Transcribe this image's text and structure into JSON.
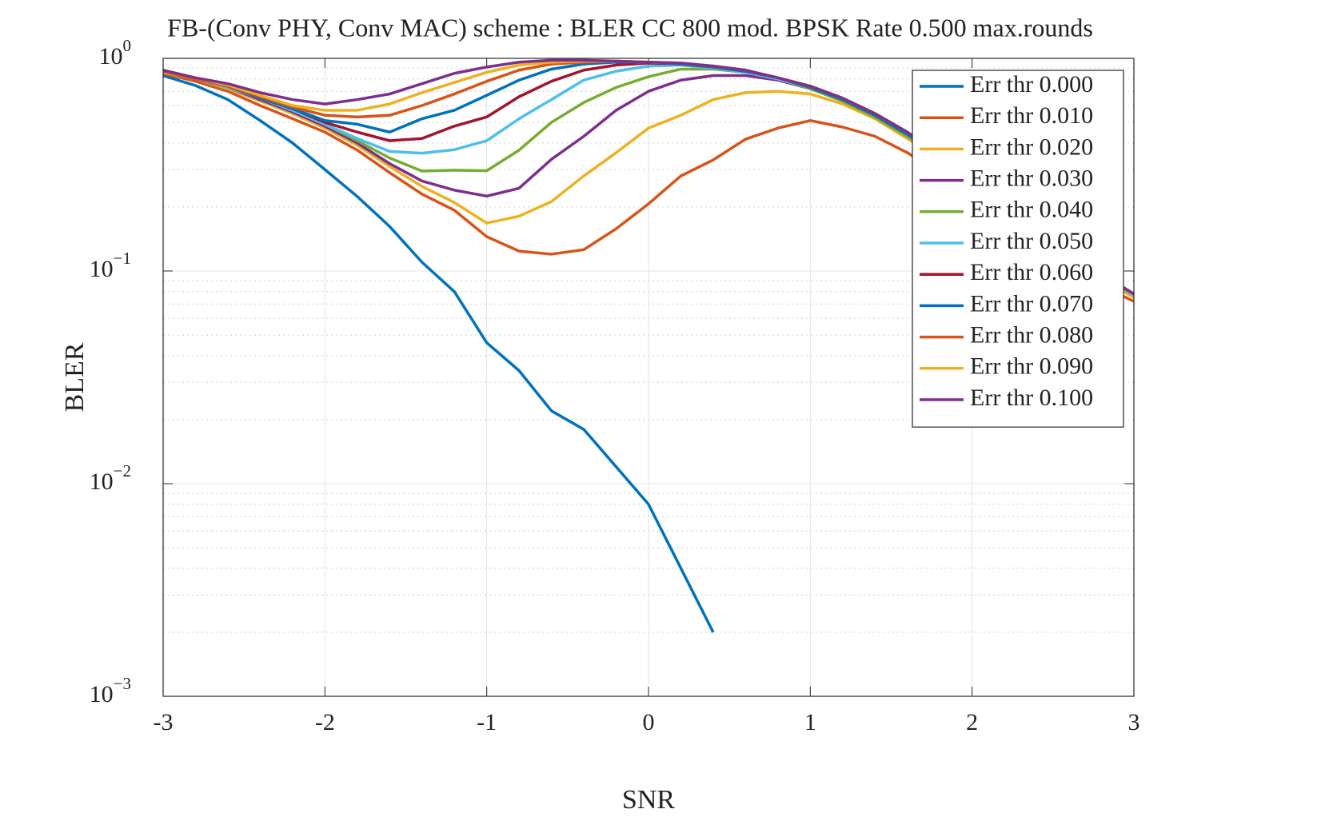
{
  "chart_data": {
    "type": "line",
    "title": "FB-(Conv PHY, Conv MAC) scheme : BLER CC 800 mod. BPSK Rate 0.500 max.rounds",
    "xlabel": "SNR",
    "ylabel": "BLER",
    "log_y": true,
    "grid": true,
    "minor_grid": true,
    "legend": "northeast",
    "xlim": [
      -3,
      3
    ],
    "ylim": [
      0.001,
      1
    ],
    "xticks": [
      -3,
      -2,
      -1,
      0,
      1,
      2,
      3
    ],
    "yticks": [
      {
        "value": 0.001,
        "label": "10",
        "exp": "−3"
      },
      {
        "value": 0.01,
        "label": "10",
        "exp": "−2"
      },
      {
        "value": 0.1,
        "label": "10",
        "exp": "−1"
      },
      {
        "value": 1,
        "label": "10",
        "exp": "0"
      }
    ],
    "x": [
      -3,
      -2.8,
      -2.6,
      -2.4,
      -2.2,
      -2,
      -1.8,
      -1.6,
      -1.4,
      -1.2,
      -1,
      -0.8,
      -0.6,
      -0.4,
      -0.2,
      0,
      0.2,
      0.4,
      0.6,
      0.8,
      1,
      1.2,
      1.4,
      1.6,
      1.8,
      2,
      2.2,
      2.4,
      2.6,
      2.8,
      3
    ],
    "series": [
      {
        "name": "Err thr 0.000",
        "color": "#0072BD",
        "values": [
          0.83,
          0.745,
          0.64,
          0.51,
          0.4,
          0.3,
          0.224,
          0.162,
          0.11,
          0.08,
          0.046,
          0.034,
          0.022,
          0.018,
          0.012,
          0.008,
          0.004,
          0.002,
          null,
          null,
          null,
          null,
          null,
          null,
          null,
          null,
          null,
          null,
          null,
          null,
          null
        ]
      },
      {
        "name": "Err thr 0.010",
        "color": "#D95319",
        "values": [
          0.85,
          0.78,
          0.7,
          0.6,
          0.52,
          0.45,
          0.37,
          0.29,
          0.23,
          0.193,
          0.145,
          0.124,
          0.12,
          0.126,
          0.158,
          0.207,
          0.28,
          0.333,
          0.417,
          0.47,
          0.51,
          0.475,
          0.43,
          0.36,
          0.29,
          0.22,
          0.17,
          0.13,
          0.105,
          0.085,
          0.072
        ]
      },
      {
        "name": "Err thr 0.020",
        "color": "#EDB120",
        "values": [
          0.86,
          0.8,
          0.72,
          0.63,
          0.55,
          0.47,
          0.39,
          0.31,
          0.25,
          0.21,
          0.168,
          0.181,
          0.212,
          0.28,
          0.36,
          0.47,
          0.54,
          0.64,
          0.69,
          0.7,
          0.68,
          0.61,
          0.52,
          0.42,
          0.33,
          0.25,
          0.19,
          0.145,
          0.113,
          0.092,
          0.075
        ]
      },
      {
        "name": "Err thr 0.030",
        "color": "#7E2F8E",
        "values": [
          0.87,
          0.8,
          0.73,
          0.64,
          0.56,
          0.48,
          0.4,
          0.32,
          0.265,
          0.24,
          0.225,
          0.245,
          0.335,
          0.43,
          0.57,
          0.7,
          0.79,
          0.83,
          0.83,
          0.79,
          0.72,
          0.63,
          0.53,
          0.43,
          0.34,
          0.26,
          0.2,
          0.15,
          0.117,
          0.095,
          0.077
        ]
      },
      {
        "name": "Err thr 0.040",
        "color": "#77AC30",
        "values": [
          0.87,
          0.8,
          0.73,
          0.65,
          0.57,
          0.49,
          0.41,
          0.34,
          0.295,
          0.298,
          0.296,
          0.37,
          0.5,
          0.62,
          0.73,
          0.82,
          0.89,
          0.89,
          0.86,
          0.8,
          0.72,
          0.63,
          0.53,
          0.43,
          0.34,
          0.26,
          0.2,
          0.15,
          0.117,
          0.095,
          0.077
        ]
      },
      {
        "name": "Err thr 0.050",
        "color": "#4DBEEE",
        "values": [
          0.87,
          0.8,
          0.73,
          0.65,
          0.57,
          0.49,
          0.42,
          0.365,
          0.358,
          0.372,
          0.41,
          0.52,
          0.64,
          0.79,
          0.87,
          0.92,
          0.93,
          0.9,
          0.86,
          0.8,
          0.73,
          0.64,
          0.54,
          0.44,
          0.35,
          0.27,
          0.2,
          0.152,
          0.118,
          0.096,
          0.077
        ]
      },
      {
        "name": "Err thr 0.060",
        "color": "#A2142F",
        "values": [
          0.87,
          0.8,
          0.74,
          0.65,
          0.58,
          0.5,
          0.45,
          0.41,
          0.42,
          0.48,
          0.53,
          0.66,
          0.78,
          0.88,
          0.93,
          0.95,
          0.94,
          0.91,
          0.87,
          0.81,
          0.73,
          0.64,
          0.54,
          0.44,
          0.35,
          0.27,
          0.21,
          0.153,
          0.119,
          0.096,
          0.078
        ]
      },
      {
        "name": "Err thr 0.070",
        "color": "#0072BD",
        "values": [
          0.87,
          0.8,
          0.74,
          0.65,
          0.58,
          0.51,
          0.49,
          0.45,
          0.52,
          0.57,
          0.67,
          0.79,
          0.89,
          0.94,
          0.96,
          0.96,
          0.94,
          0.91,
          0.87,
          0.81,
          0.73,
          0.64,
          0.54,
          0.44,
          0.35,
          0.27,
          0.21,
          0.154,
          0.119,
          0.097,
          0.078
        ]
      },
      {
        "name": "Err thr 0.080",
        "color": "#D95319",
        "values": [
          0.87,
          0.8,
          0.74,
          0.66,
          0.59,
          0.54,
          0.53,
          0.54,
          0.6,
          0.68,
          0.78,
          0.88,
          0.94,
          0.96,
          0.97,
          0.96,
          0.95,
          0.92,
          0.88,
          0.81,
          0.74,
          0.65,
          0.55,
          0.45,
          0.35,
          0.27,
          0.21,
          0.155,
          0.12,
          0.097,
          0.078
        ]
      },
      {
        "name": "Err thr 0.090",
        "color": "#EDB120",
        "values": [
          0.88,
          0.81,
          0.75,
          0.67,
          0.6,
          0.57,
          0.57,
          0.61,
          0.69,
          0.77,
          0.86,
          0.93,
          0.96,
          0.97,
          0.97,
          0.96,
          0.95,
          0.92,
          0.88,
          0.81,
          0.74,
          0.65,
          0.55,
          0.45,
          0.35,
          0.27,
          0.21,
          0.155,
          0.12,
          0.097,
          0.078
        ]
      },
      {
        "name": "Err thr 0.100",
        "color": "#7E2F8E",
        "values": [
          0.88,
          0.81,
          0.76,
          0.69,
          0.64,
          0.61,
          0.64,
          0.68,
          0.76,
          0.85,
          0.91,
          0.96,
          0.98,
          0.98,
          0.97,
          0.96,
          0.95,
          0.92,
          0.88,
          0.81,
          0.74,
          0.65,
          0.55,
          0.45,
          0.35,
          0.27,
          0.21,
          0.155,
          0.12,
          0.097,
          0.078
        ]
      }
    ]
  }
}
